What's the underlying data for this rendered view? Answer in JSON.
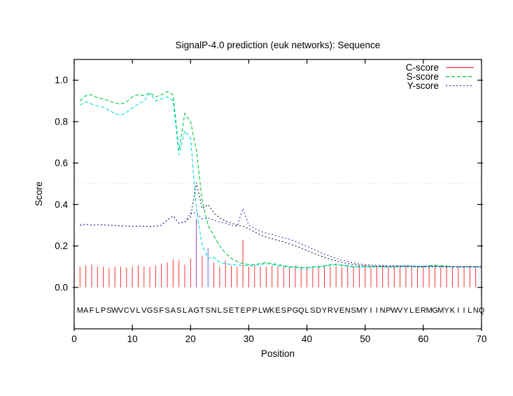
{
  "title": "SignalP-4.0 prediction (euk networks): Sequence",
  "axes": {
    "xlabel": "Position",
    "ylabel": "Score",
    "xticks": [
      "0",
      "10",
      "20",
      "30",
      "40",
      "50",
      "60",
      "70"
    ],
    "xtick_values": [
      0,
      10,
      20,
      30,
      40,
      50,
      60,
      70
    ],
    "yticks": [
      "0.0",
      "0.2",
      "0.4",
      "0.6",
      "0.8",
      "1.0"
    ],
    "ytick_values": [
      0.0,
      0.2,
      0.4,
      0.6,
      0.8,
      1.0
    ],
    "xmin": 0,
    "xmax": 70,
    "ymin": -0.2,
    "ymax": 1.1
  },
  "legend": [
    {
      "label": "C-score",
      "color": "#ff3030",
      "dash": ""
    },
    {
      "label": "S-score",
      "color": "#00c43c",
      "dash": "5,3"
    },
    {
      "label": "Y-score",
      "color": "#3434c8",
      "dash": "2,3"
    }
  ],
  "sequence": "MAFLPSWVCVLVGSFSASLAGTSNLSETEPPLWKESPGQLSDYRVENSMYIINPWVYLERMGMYKIILNQ",
  "colors": {
    "background": "#ffffff",
    "border": "#000000",
    "threshold_line": "#c2c2ae",
    "c_score": "#ff3030",
    "s_score": "#00c43c",
    "s_score_secondary": "#00dede",
    "y_score": "#3434c8",
    "y_score_secondary": "#16163c",
    "text": "#000000"
  },
  "chart_data": {
    "type": "line",
    "title": "SignalP-4.0 prediction (euk networks): Sequence",
    "xlabel": "Position",
    "ylabel": "Score",
    "x_start": 1,
    "x_step": 1,
    "xlim": [
      0,
      70
    ],
    "ylim": [
      -0.2,
      1.1
    ],
    "threshold": {
      "y": 0.5,
      "style": "dotted",
      "color": "#c2c2ae"
    },
    "legend_position": "top-right-inside",
    "grid": false,
    "series": [
      {
        "name": "C-score",
        "type": "impulses",
        "color": "#ff3030",
        "style": "solid",
        "impulse_color_overrides": {
          "21": "#9944cc",
          "23": "#6f5fd8"
        },
        "values": [
          0.1,
          0.105,
          0.11,
          0.1,
          0.1,
          0.095,
          0.1,
          0.1,
          0.095,
          0.1,
          0.105,
          0.1,
          0.1,
          0.105,
          0.115,
          0.12,
          0.135,
          0.13,
          0.11,
          0.14,
          0.33,
          0.15,
          0.19,
          0.12,
          0.1,
          0.13,
          0.105,
          0.1,
          0.23,
          0.1,
          0.105,
          0.1,
          0.1,
          0.105,
          0.1,
          0.1,
          0.1,
          0.105,
          0.1,
          0.1,
          0.1,
          0.105,
          0.1,
          0.1,
          0.105,
          0.1,
          0.1,
          0.1,
          0.105,
          0.11,
          0.1,
          0.1,
          0.105,
          0.1,
          0.1,
          0.1,
          0.105,
          0.1,
          0.1,
          0.105,
          0.1,
          0.1,
          0.1,
          0.105,
          0.1,
          0.1,
          0.1,
          0.105,
          0.1,
          0.1
        ]
      },
      {
        "name": "S-score",
        "type": "line",
        "color": "#00c43c",
        "style": "dashed",
        "values": [
          0.9,
          0.925,
          0.93,
          0.915,
          0.91,
          0.9,
          0.89,
          0.885,
          0.895,
          0.92,
          0.93,
          0.925,
          0.94,
          0.92,
          0.93,
          0.945,
          0.93,
          0.66,
          0.84,
          0.8,
          0.66,
          0.42,
          0.3,
          0.25,
          0.2,
          0.165,
          0.14,
          0.125,
          0.115,
          0.11,
          0.11,
          0.115,
          0.12,
          0.115,
          0.11,
          0.105,
          0.1,
          0.1,
          0.095,
          0.095,
          0.1,
          0.1,
          0.105,
          0.11,
          0.112,
          0.108,
          0.105,
          0.1,
          0.1,
          0.1,
          0.1,
          0.102,
          0.1,
          0.1,
          0.1,
          0.103,
          0.105,
          0.103,
          0.1,
          0.1,
          0.105,
          0.107,
          0.105,
          0.103,
          0.1,
          0.1,
          0.1,
          0.1,
          0.1,
          0.1
        ]
      },
      {
        "name": "S-score (second network)",
        "type": "line",
        "color": "#00dede",
        "style": "dashed",
        "values": [
          0.88,
          0.895,
          0.885,
          0.875,
          0.87,
          0.855,
          0.84,
          0.83,
          0.845,
          0.865,
          0.885,
          0.9,
          0.935,
          0.9,
          0.91,
          0.92,
          0.9,
          0.64,
          0.755,
          0.72,
          0.38,
          0.2,
          0.14,
          0.145,
          0.12,
          0.115,
          0.11,
          0.108,
          0.105,
          0.105,
          0.105,
          0.11,
          0.115,
          0.11,
          0.105,
          0.1,
          0.097,
          0.097,
          0.093,
          0.093,
          0.097,
          0.097,
          0.102,
          0.107,
          0.109,
          0.105,
          0.102,
          0.098,
          0.098,
          0.098,
          0.098,
          0.1,
          0.098,
          0.098,
          0.098,
          0.1,
          0.102,
          0.1,
          0.098,
          0.098,
          0.102,
          0.104,
          0.102,
          0.1,
          0.098,
          0.098,
          0.098,
          0.098,
          0.098,
          0.098
        ]
      },
      {
        "name": "Y-score (second network)",
        "type": "line",
        "color": "#16163c",
        "style": "dotted",
        "values": [
          0.3,
          0.305,
          0.3,
          0.303,
          0.302,
          0.3,
          0.298,
          0.297,
          0.296,
          0.295,
          0.296,
          0.295,
          0.294,
          0.295,
          0.3,
          0.325,
          0.345,
          0.31,
          0.315,
          0.34,
          0.505,
          0.38,
          0.4,
          0.36,
          0.335,
          0.32,
          0.312,
          0.3,
          0.295,
          0.283,
          0.268,
          0.253,
          0.243,
          0.235,
          0.227,
          0.22,
          0.21,
          0.2,
          0.19,
          0.178,
          0.166,
          0.155,
          0.145,
          0.136,
          0.128,
          0.121,
          0.115,
          0.11,
          0.107,
          0.105,
          0.103,
          0.102,
          0.102,
          0.101,
          0.101,
          0.1,
          0.1,
          0.1,
          0.1,
          0.1,
          0.1,
          0.1,
          0.1,
          0.1,
          0.099,
          0.099,
          0.099,
          0.099,
          0.099,
          0.099
        ]
      },
      {
        "name": "Y-score",
        "type": "line",
        "color": "#3434c8",
        "style": "dotted",
        "values": [
          0.3,
          0.305,
          0.3,
          0.303,
          0.302,
          0.3,
          0.298,
          0.297,
          0.296,
          0.295,
          0.296,
          0.295,
          0.294,
          0.295,
          0.3,
          0.325,
          0.345,
          0.31,
          0.315,
          0.36,
          0.36,
          0.33,
          0.335,
          0.325,
          0.315,
          0.31,
          0.3,
          0.295,
          0.38,
          0.3,
          0.285,
          0.27,
          0.262,
          0.255,
          0.247,
          0.24,
          0.232,
          0.222,
          0.21,
          0.198,
          0.185,
          0.172,
          0.16,
          0.15,
          0.14,
          0.132,
          0.125,
          0.118,
          0.113,
          0.11,
          0.108,
          0.107,
          0.106,
          0.105,
          0.105,
          0.104,
          0.104,
          0.103,
          0.103,
          0.102,
          0.102,
          0.102,
          0.101,
          0.101,
          0.1,
          0.1,
          0.1,
          0.1,
          0.1,
          0.1
        ]
      }
    ]
  }
}
